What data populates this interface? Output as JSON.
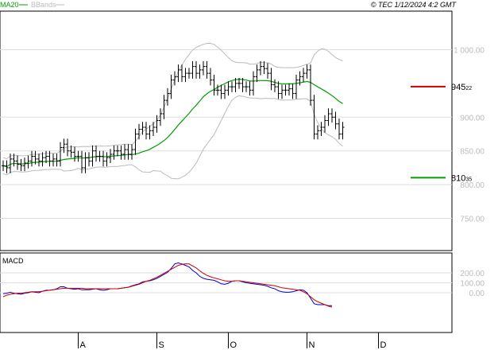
{
  "header": {
    "legend": [
      {
        "label": "MA20",
        "color": "#00a000"
      },
      {
        "label": "BBands",
        "color": "#bbbbbb"
      }
    ],
    "copyright": "© TEC 1/12/2024 4:2 GMT"
  },
  "colors": {
    "price": "#000000",
    "ma20": "#00a000",
    "bbands": "#bbbbbb",
    "resistance": "#cc0000",
    "support": "#00a000",
    "macd": "#0000cc",
    "signal": "#cc0000",
    "grid": "#dddddd"
  },
  "chart_data": [
    {
      "type": "ohlc",
      "name": "price",
      "ylim": [
        7200,
        10500
      ],
      "y_ticks": [
        {
          "value": 10000,
          "label": "1 000.00"
        },
        {
          "value": 9000,
          "label": "900.00"
        },
        {
          "value": 8500,
          "label": "850.00"
        },
        {
          "value": 8000,
          "label": "800.00"
        },
        {
          "value": 7500,
          "label": "750.00"
        }
      ],
      "x_labels": [
        {
          "index": 21,
          "label": "A"
        },
        {
          "index": 43,
          "label": "S"
        },
        {
          "index": 63,
          "label": "O"
        },
        {
          "index": 85,
          "label": "N"
        },
        {
          "index": 105,
          "label": "D"
        }
      ],
      "levels": [
        {
          "name": "resistance",
          "value": 9452.2,
          "label": "945",
          "label_small": "22"
        },
        {
          "name": "support",
          "value": 8103.5,
          "label": "810",
          "label_small": "35"
        }
      ],
      "close": [
        8280,
        8250,
        8380,
        8350,
        8300,
        8280,
        8320,
        8350,
        8420,
        8380,
        8350,
        8400,
        8420,
        8350,
        8380,
        8350,
        8550,
        8600,
        8500,
        8480,
        8420,
        8420,
        8250,
        8400,
        8350,
        8500,
        8420,
        8420,
        8350,
        8400,
        8450,
        8500,
        8500,
        8450,
        8520,
        8450,
        8520,
        8750,
        8820,
        8850,
        8750,
        8800,
        8850,
        8950,
        9050,
        9250,
        9350,
        9550,
        9600,
        9700,
        9600,
        9650,
        9650,
        9750,
        9650,
        9700,
        9750,
        9650,
        9550,
        9400,
        9400,
        9350,
        9400,
        9450,
        9450,
        9500,
        9500,
        9450,
        9450,
        9400,
        9600,
        9700,
        9750,
        9720,
        9650,
        9480,
        9450,
        9350,
        9400,
        9400,
        9420,
        9350,
        9550,
        9600,
        9650,
        9700,
        9250,
        8750,
        8800,
        8850,
        8950,
        9050,
        9000,
        8900,
        8750,
        8850
      ]
    },
    {
      "type": "line",
      "name": "MACD",
      "ylim": [
        -400,
        400
      ],
      "y_ticks": [
        {
          "value": 200,
          "label": "200.00"
        },
        {
          "value": 100,
          "label": "100.00"
        },
        {
          "value": 0,
          "label": "0.00"
        }
      ],
      "series": [
        {
          "name": "macd",
          "values": [
            -10,
            -5,
            5,
            -5,
            -10,
            -15,
            -5,
            0,
            10,
            5,
            0,
            15,
            25,
            25,
            30,
            40,
            60,
            60,
            45,
            40,
            35,
            40,
            30,
            30,
            30,
            35,
            40,
            30,
            25,
            30,
            40,
            40,
            40,
            45,
            50,
            55,
            70,
            80,
            90,
            110,
            115,
            120,
            130,
            145,
            165,
            185,
            205,
            245,
            290,
            300,
            290,
            275,
            260,
            225,
            200,
            165,
            145,
            135,
            130,
            125,
            110,
            90,
            85,
            95,
            115,
            120,
            120,
            110,
            100,
            95,
            90,
            85,
            80,
            75,
            65,
            50,
            40,
            20,
            10,
            5,
            5,
            10,
            20,
            30,
            25,
            0,
            -55,
            -110,
            -120,
            -120,
            -120,
            -130,
            -130
          ]
        },
        {
          "name": "signal",
          "values": [
            -40,
            -25,
            -15,
            -10,
            -5,
            -5,
            0,
            5,
            10,
            10,
            10,
            15,
            20,
            25,
            30,
            35,
            40,
            45,
            45,
            45,
            45,
            45,
            45,
            40,
            40,
            40,
            40,
            40,
            40,
            40,
            40,
            40,
            40,
            45,
            50,
            55,
            65,
            75,
            85,
            100,
            115,
            125,
            140,
            155,
            175,
            195,
            215,
            235,
            255,
            275,
            285,
            290,
            290,
            270,
            250,
            220,
            195,
            175,
            160,
            150,
            140,
            130,
            120,
            115,
            115,
            120,
            120,
            115,
            110,
            105,
            100,
            95,
            90,
            85,
            80,
            75,
            70,
            60,
            50,
            45,
            40,
            35,
            30,
            25,
            10,
            -10,
            -40,
            -70,
            -90,
            -105,
            -120,
            -135,
            -145
          ]
        }
      ]
    }
  ]
}
